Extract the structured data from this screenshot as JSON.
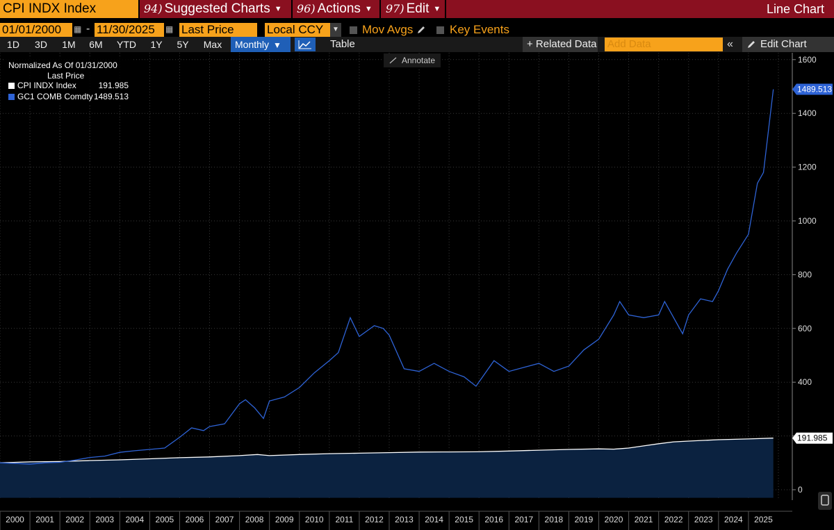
{
  "header": {
    "ticker": "CPI INDX Index",
    "menus": [
      {
        "num": "94)",
        "label": "Suggested Charts"
      },
      {
        "num": "96)",
        "label": "Actions"
      },
      {
        "num": "97)",
        "label": "Edit"
      }
    ],
    "chart_type_title": "Line Chart"
  },
  "controls": {
    "start_date": "01/01/2000",
    "end_date": "11/30/2025",
    "price_field": "Last Price",
    "currency": "Local CCY",
    "mov_avgs": "Mov Avgs",
    "key_events": "Key Events"
  },
  "toolbar": {
    "timeframes": [
      "1D",
      "3D",
      "1M",
      "6M",
      "YTD",
      "1Y",
      "5Y",
      "Max"
    ],
    "frequency": "Monthly",
    "table_label": "Table",
    "related_data": "+ Related Data",
    "add_data_placeholder": "Add Data",
    "collapse_label": "«",
    "edit_chart": "Edit Chart",
    "annotate": "Annotate"
  },
  "colors": {
    "accent_orange": "#f7a21b",
    "header_red": "#8a1020",
    "gold_series": "#2e63d6",
    "cpi_series": "#ffffff",
    "area_fill": "#0b2240"
  },
  "chart_data": {
    "type": "line",
    "legend_title": "Normalized As Of 01/31/2000",
    "legend_subtitle": "Last Price",
    "legend_placement": "top-left",
    "x_ticks": [
      "2000",
      "2001",
      "2002",
      "2003",
      "2004",
      "2005",
      "2006",
      "2007",
      "2008",
      "2009",
      "2010",
      "2011",
      "2012",
      "2013",
      "2014",
      "2015",
      "2016",
      "2017",
      "2018",
      "2019",
      "2020",
      "2021",
      "2022",
      "2023",
      "2024",
      "2025"
    ],
    "y_ticks": [
      0,
      200,
      400,
      600,
      800,
      1000,
      1200,
      1400,
      1600
    ],
    "ylim": [
      -30,
      1600
    ],
    "xlim": [
      2000.0,
      2026.0
    ],
    "grid": true,
    "series": [
      {
        "name": "CPI INDX Index",
        "last_value": "191.985",
        "color": "#ffffff",
        "x": [
          2000.0,
          2001.0,
          2002.0,
          2003.0,
          2004.0,
          2005.0,
          2006.0,
          2007.0,
          2008.0,
          2008.6,
          2009.0,
          2010.0,
          2011.0,
          2012.0,
          2013.0,
          2014.0,
          2015.0,
          2016.0,
          2017.0,
          2018.0,
          2019.0,
          2020.0,
          2020.5,
          2021.0,
          2021.5,
          2022.0,
          2022.5,
          2023.0,
          2024.0,
          2025.0,
          2025.83
        ],
        "values": [
          100,
          103.5,
          105,
          108.5,
          111,
          115,
          119,
          122,
          127,
          131,
          127,
          131,
          134,
          136,
          138,
          140,
          140.5,
          141,
          144,
          147,
          150,
          152,
          151,
          155,
          163,
          171,
          178,
          181,
          186,
          189,
          191.985
        ]
      },
      {
        "name": "GC1 COMB Comdty",
        "last_value": "1489.513",
        "color": "#2e63d6",
        "x": [
          2000.0,
          2000.5,
          2001.0,
          2001.5,
          2002.0,
          2002.5,
          2003.0,
          2003.5,
          2004.0,
          2004.5,
          2005.0,
          2005.5,
          2006.0,
          2006.4,
          2006.8,
          2007.0,
          2007.5,
          2008.0,
          2008.2,
          2008.5,
          2008.8,
          2009.0,
          2009.5,
          2010.0,
          2010.5,
          2011.0,
          2011.3,
          2011.7,
          2012.0,
          2012.5,
          2012.8,
          2013.0,
          2013.5,
          2014.0,
          2014.5,
          2015.0,
          2015.5,
          2015.9,
          2016.5,
          2017.0,
          2017.5,
          2018.0,
          2018.5,
          2019.0,
          2019.5,
          2020.0,
          2020.5,
          2020.7,
          2021.0,
          2021.5,
          2022.0,
          2022.2,
          2022.8,
          2023.0,
          2023.4,
          2023.8,
          2024.0,
          2024.3,
          2024.6,
          2025.0,
          2025.3,
          2025.5,
          2025.83
        ],
        "values": [
          100,
          98,
          95,
          100,
          102,
          110,
          120,
          125,
          139,
          145,
          150,
          155,
          195,
          230,
          220,
          235,
          245,
          320,
          335,
          305,
          265,
          330,
          345,
          380,
          435,
          480,
          510,
          640,
          570,
          610,
          600,
          575,
          450,
          440,
          470,
          440,
          420,
          385,
          480,
          440,
          455,
          470,
          440,
          460,
          520,
          560,
          650,
          700,
          650,
          640,
          650,
          700,
          580,
          650,
          710,
          700,
          740,
          820,
          880,
          950,
          1140,
          1180,
          1489.513
        ]
      }
    ]
  }
}
